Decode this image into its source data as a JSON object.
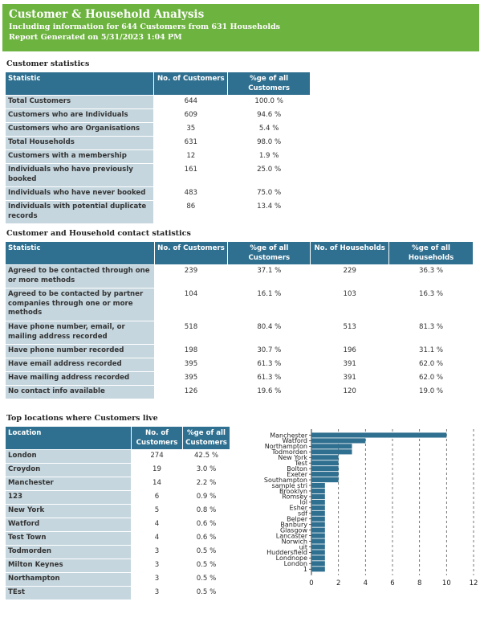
{
  "header": {
    "title": "Customer & Household Analysis",
    "subtitle": "Including information for 644 Customers from 631 Households",
    "generated": "Report Generated on 5/31/2023 1:04 PM"
  },
  "customer_stats": {
    "title": "Customer statistics",
    "headers": [
      "Statistic",
      "No. of Customers",
      "%ge of all Customers"
    ],
    "rows": [
      [
        "Total Customers",
        "644",
        "100.0 %"
      ],
      [
        "Customers who are Individuals",
        "609",
        "94.6 %"
      ],
      [
        "Customers who are Organisations",
        "35",
        "5.4 %"
      ],
      [
        "Total Households",
        "631",
        "98.0 %"
      ],
      [
        "Customers with a membership",
        "12",
        "1.9 %"
      ],
      [
        "Individuals who have previously booked",
        "161",
        "25.0 %"
      ],
      [
        "Individuals who have never booked",
        "483",
        "75.0 %"
      ],
      [
        "Individuals with potential duplicate records",
        "86",
        "13.4 %"
      ]
    ]
  },
  "contact_stats": {
    "title": "Customer and Household contact statistics",
    "headers": [
      "Statistic",
      "No. of Customers",
      "%ge of all Customers",
      "No. of Households",
      "%ge of all Households"
    ],
    "rows": [
      [
        "Agreed to be contacted through one or more methods",
        "239",
        "37.1 %",
        "229",
        "36.3 %"
      ],
      [
        "Agreed to be contacted by partner companies through one or more methods",
        "104",
        "16.1 %",
        "103",
        "16.3 %"
      ],
      [
        "Have phone number, email, or mailing address recorded",
        "518",
        "80.4 %",
        "513",
        "81.3 %"
      ],
      [
        "Have phone number recorded",
        "198",
        "30.7 %",
        "196",
        "31.1 %"
      ],
      [
        "Have email address recorded",
        "395",
        "61.3 %",
        "391",
        "62.0 %"
      ],
      [
        "Have mailing address recorded",
        "395",
        "61.3 %",
        "391",
        "62.0 %"
      ],
      [
        "No contact info available",
        "126",
        "19.6 %",
        "120",
        "19.0 %"
      ]
    ]
  },
  "locations": {
    "title": "Top locations where Customers live",
    "headers": [
      "Location",
      "No. of Customers",
      "%ge of all Customers"
    ],
    "rows": [
      [
        "London",
        "274",
        "42.5 %"
      ],
      [
        "Croydon",
        "19",
        "3.0 %"
      ],
      [
        "Manchester",
        "14",
        "2.2 %"
      ],
      [
        "123",
        "6",
        "0.9 %"
      ],
      [
        "New York",
        "5",
        "0.8 %"
      ],
      [
        "Watford",
        "4",
        "0.6 %"
      ],
      [
        "Test Town",
        "4",
        "0.6 %"
      ],
      [
        "Todmorden",
        "3",
        "0.5 %"
      ],
      [
        "Milton Keynes",
        "3",
        "0.5 %"
      ],
      [
        "Northampton",
        "3",
        "0.5 %"
      ],
      [
        "TEst",
        "3",
        "0.5 %"
      ]
    ]
  },
  "chart_data": {
    "type": "bar",
    "orientation": "horizontal",
    "categories": [
      "Manchester",
      "Watford",
      "Northampton",
      "Todmorden",
      "New York",
      "Test",
      "Bolton",
      "Exeter",
      "Southampton",
      "sample stri",
      "Brooklyn",
      "Romsey",
      "Iol",
      "Esher",
      "sdf",
      "Belper",
      "Banbury",
      "Glasgow",
      "Lancaster",
      "Norwich",
      "uit",
      "Huddersfield",
      "Londnope",
      "London",
      "1"
    ],
    "values": [
      10,
      4,
      3,
      3,
      2,
      2,
      2,
      2,
      2,
      1,
      1,
      1,
      1,
      1,
      1,
      1,
      1,
      1,
      1,
      1,
      1,
      1,
      1,
      1,
      1
    ],
    "xticks": [
      "0",
      "2",
      "4",
      "6",
      "8",
      "10",
      "12"
    ],
    "xlim": [
      0,
      12
    ],
    "grid": "vertical dashed",
    "color": "#2f6f8f"
  }
}
